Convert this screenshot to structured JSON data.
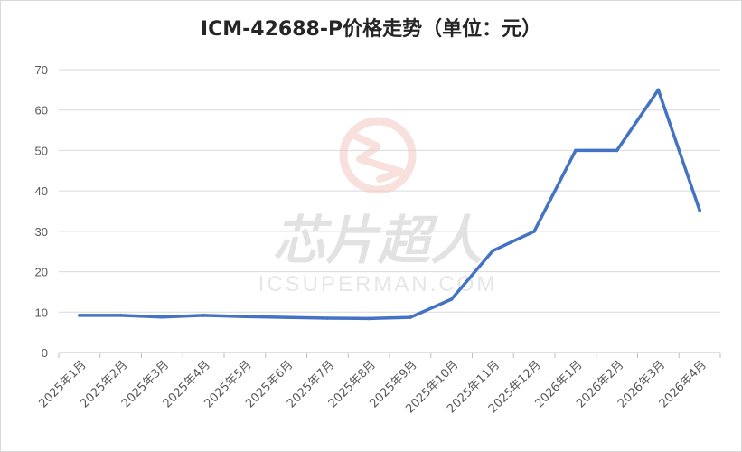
{
  "chart_data": {
    "type": "line",
    "title": "ICM-42688-P价格走势（单位：元）",
    "xlabel": "",
    "ylabel": "",
    "ylim": [
      0,
      70
    ],
    "yticks": [
      0,
      10,
      20,
      30,
      40,
      50,
      60,
      70
    ],
    "grid": true,
    "legend": "none",
    "categories": [
      "2025年1月",
      "2025年2月",
      "2025年3月",
      "2025年4月",
      "2025年5月",
      "2025年6月",
      "2025年7月",
      "2025年8月",
      "2025年9月",
      "2025年10月",
      "2025年11月",
      "2025年12月",
      "2026年1月",
      "2026年2月",
      "2026年3月",
      "2026年4月"
    ],
    "series": [
      {
        "values": [
          9.2,
          9.2,
          8.8,
          9.2,
          8.9,
          8.7,
          8.5,
          8.4,
          8.7,
          13.2,
          25.2,
          30.0,
          50.0,
          50.0,
          65.0,
          35.2
        ],
        "color": "#4472c4"
      }
    ]
  },
  "watermark": {
    "text": "芯片超人",
    "subtext": "ICSUPERMAN.COM",
    "logo": "ic-superman-logo"
  },
  "colors": {
    "line": "#4472c4",
    "grid": "#d9d9d9",
    "watermark_logo": "#f4c7c3"
  }
}
